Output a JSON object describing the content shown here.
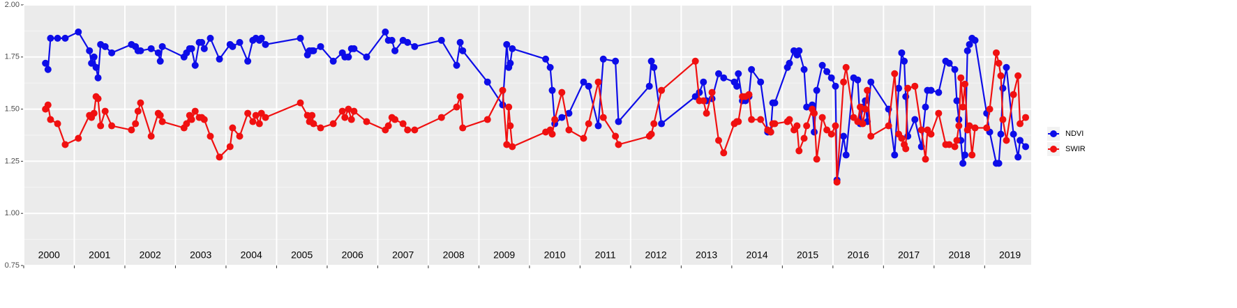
{
  "chart_data": {
    "type": "line",
    "x": [
      2000.43,
      2000.48,
      2000.53,
      2000.67,
      2000.82,
      2001.08,
      2001.3,
      2001.34,
      2001.39,
      2001.43,
      2001.47,
      2001.52,
      2001.61,
      2001.74,
      2002.13,
      2002.21,
      2002.26,
      2002.31,
      2002.52,
      2002.66,
      2002.7,
      2002.74,
      2003.17,
      2003.22,
      2003.28,
      2003.32,
      2003.39,
      2003.47,
      2003.52,
      2003.57,
      2003.69,
      2003.87,
      2004.08,
      2004.13,
      2004.27,
      2004.43,
      2004.53,
      2004.59,
      2004.66,
      2004.7,
      2004.78,
      2005.47,
      2005.61,
      2005.65,
      2005.7,
      2005.73,
      2005.87,
      2006.12,
      2006.3,
      2006.35,
      2006.42,
      2006.48,
      2006.53,
      2006.78,
      2007.15,
      2007.21,
      2007.28,
      2007.34,
      2007.5,
      2007.59,
      2007.73,
      2008.26,
      2008.56,
      2008.63,
      2008.68,
      2009.17,
      2009.47,
      2009.55,
      2009.59,
      2009.62,
      2009.66,
      2010.32,
      2010.41,
      2010.45,
      2010.5,
      2010.64,
      2010.78,
      2011.07,
      2011.17,
      2011.36,
      2011.46,
      2011.7,
      2011.76,
      2012.37,
      2012.41,
      2012.46,
      2012.61,
      2013.28,
      2013.36,
      2013.44,
      2013.5,
      2013.61,
      2013.74,
      2013.84,
      2014.05,
      2014.1,
      2014.13,
      2014.21,
      2014.27,
      2014.34,
      2014.39,
      2014.57,
      2014.71,
      2014.77,
      2014.81,
      2014.85,
      2015.1,
      2015.14,
      2015.23,
      2015.29,
      2015.33,
      2015.43,
      2015.48,
      2015.59,
      2015.63,
      2015.68,
      2015.79,
      2015.88,
      2015.97,
      2016.05,
      2016.08,
      2016.21,
      2016.26,
      2016.41,
      2016.49,
      2016.54,
      2016.59,
      2016.64,
      2016.68,
      2016.75,
      2017.1,
      2017.22,
      2017.3,
      2017.36,
      2017.41,
      2017.44,
      2017.48,
      2017.62,
      2017.75,
      2017.83,
      2017.87,
      2017.94,
      2018.09,
      2018.23,
      2018.3,
      2018.41,
      2018.45,
      2018.49,
      2018.53,
      2018.57,
      2018.61,
      2018.66,
      2018.7,
      2018.75,
      2018.81,
      2019.04,
      2019.1,
      2019.23,
      2019.28,
      2019.32,
      2019.36,
      2019.43,
      2019.57,
      2019.66,
      2019.7,
      2019.81
    ],
    "series": [
      {
        "name": "NDVI",
        "color": "#0d0de8",
        "values": [
          1.72,
          1.69,
          1.84,
          1.84,
          1.84,
          1.87,
          1.78,
          1.72,
          1.75,
          1.7,
          1.65,
          1.81,
          1.8,
          1.77,
          1.81,
          1.8,
          1.78,
          1.78,
          1.79,
          1.77,
          1.73,
          1.8,
          1.75,
          1.77,
          1.79,
          1.79,
          1.71,
          1.82,
          1.82,
          1.79,
          1.84,
          1.74,
          1.81,
          1.8,
          1.82,
          1.73,
          1.83,
          1.84,
          1.83,
          1.84,
          1.81,
          1.84,
          1.76,
          1.78,
          1.78,
          1.78,
          1.8,
          1.73,
          1.77,
          1.75,
          1.75,
          1.79,
          1.79,
          1.75,
          1.87,
          1.83,
          1.83,
          1.78,
          1.83,
          1.82,
          1.8,
          1.83,
          1.71,
          1.82,
          1.78,
          1.63,
          1.52,
          1.81,
          1.7,
          1.72,
          1.79,
          1.74,
          1.7,
          1.59,
          1.43,
          1.46,
          1.48,
          1.63,
          1.61,
          1.42,
          1.74,
          1.73,
          1.44,
          1.61,
          1.73,
          1.7,
          1.43,
          1.56,
          1.58,
          1.63,
          1.54,
          1.55,
          1.67,
          1.65,
          1.63,
          1.61,
          1.67,
          1.54,
          1.54,
          1.56,
          1.69,
          1.63,
          1.39,
          1.39,
          1.53,
          1.53,
          1.7,
          1.72,
          1.78,
          1.76,
          1.78,
          1.69,
          1.51,
          1.52,
          1.39,
          1.59,
          1.71,
          1.68,
          1.65,
          1.61,
          1.16,
          1.37,
          1.28,
          1.65,
          1.64,
          1.43,
          1.51,
          1.54,
          1.44,
          1.63,
          1.5,
          1.28,
          1.6,
          1.77,
          1.73,
          1.56,
          1.37,
          1.45,
          1.32,
          1.51,
          1.59,
          1.59,
          1.58,
          1.73,
          1.72,
          1.69,
          1.54,
          1.45,
          1.35,
          1.24,
          1.28,
          1.78,
          1.81,
          1.84,
          1.83,
          1.48,
          1.39,
          1.24,
          1.24,
          1.38,
          1.6,
          1.7,
          1.38,
          1.27,
          1.35,
          1.32
        ]
      },
      {
        "name": "SWIR",
        "color": "#f01010",
        "values": [
          1.5,
          1.52,
          1.45,
          1.43,
          1.33,
          1.36,
          1.47,
          1.46,
          1.48,
          1.56,
          1.55,
          1.42,
          1.49,
          1.42,
          1.4,
          1.43,
          1.49,
          1.53,
          1.37,
          1.48,
          1.47,
          1.44,
          1.41,
          1.43,
          1.47,
          1.45,
          1.49,
          1.46,
          1.46,
          1.45,
          1.37,
          1.27,
          1.32,
          1.41,
          1.37,
          1.48,
          1.44,
          1.47,
          1.43,
          1.48,
          1.46,
          1.53,
          1.47,
          1.44,
          1.47,
          1.43,
          1.41,
          1.43,
          1.49,
          1.46,
          1.5,
          1.45,
          1.49,
          1.44,
          1.4,
          1.42,
          1.46,
          1.45,
          1.43,
          1.4,
          1.4,
          1.46,
          1.51,
          1.56,
          1.41,
          1.45,
          1.59,
          1.33,
          1.51,
          1.42,
          1.32,
          1.39,
          1.4,
          1.38,
          1.45,
          1.58,
          1.4,
          1.36,
          1.43,
          1.63,
          1.46,
          1.37,
          1.33,
          1.37,
          1.38,
          1.43,
          1.59,
          1.73,
          1.54,
          1.54,
          1.48,
          1.58,
          1.35,
          1.29,
          1.43,
          1.44,
          1.44,
          1.56,
          1.56,
          1.57,
          1.45,
          1.45,
          1.4,
          1.39,
          1.43,
          1.43,
          1.44,
          1.45,
          1.4,
          1.42,
          1.3,
          1.36,
          1.42,
          1.5,
          1.48,
          1.26,
          1.46,
          1.4,
          1.38,
          1.42,
          1.15,
          1.63,
          1.7,
          1.46,
          1.44,
          1.51,
          1.43,
          1.5,
          1.59,
          1.37,
          1.42,
          1.67,
          1.38,
          1.36,
          1.33,
          1.31,
          1.6,
          1.61,
          1.4,
          1.26,
          1.4,
          1.38,
          1.48,
          1.33,
          1.33,
          1.32,
          1.35,
          1.42,
          1.65,
          1.51,
          1.62,
          1.4,
          1.42,
          1.28,
          1.41,
          1.41,
          1.5,
          1.77,
          1.72,
          1.66,
          1.45,
          1.35,
          1.57,
          1.66,
          1.43,
          1.46
        ]
      }
    ],
    "xlim": [
      2000,
      2019.92
    ],
    "xticks": [
      2000,
      2001,
      2002,
      2003,
      2004,
      2005,
      2006,
      2007,
      2008,
      2009,
      2010,
      2011,
      2012,
      2013,
      2014,
      2015,
      2016,
      2017,
      2018,
      2019
    ],
    "ylim": [
      0.75,
      2.0
    ],
    "yticks": [
      {
        "value": 0.75,
        "label": "0.75"
      },
      {
        "value": 1,
        "label": "1.00"
      },
      {
        "value": 1.25,
        "label": "1.25"
      },
      {
        "value": 1.5,
        "label": "1.50"
      },
      {
        "value": 1.75,
        "label": "1.75"
      },
      {
        "value": 2,
        "label": "2.00"
      }
    ],
    "yminorticks": [
      0.875,
      1.125,
      1.375,
      1.625,
      1.875
    ],
    "grid": true,
    "legend": "right"
  }
}
